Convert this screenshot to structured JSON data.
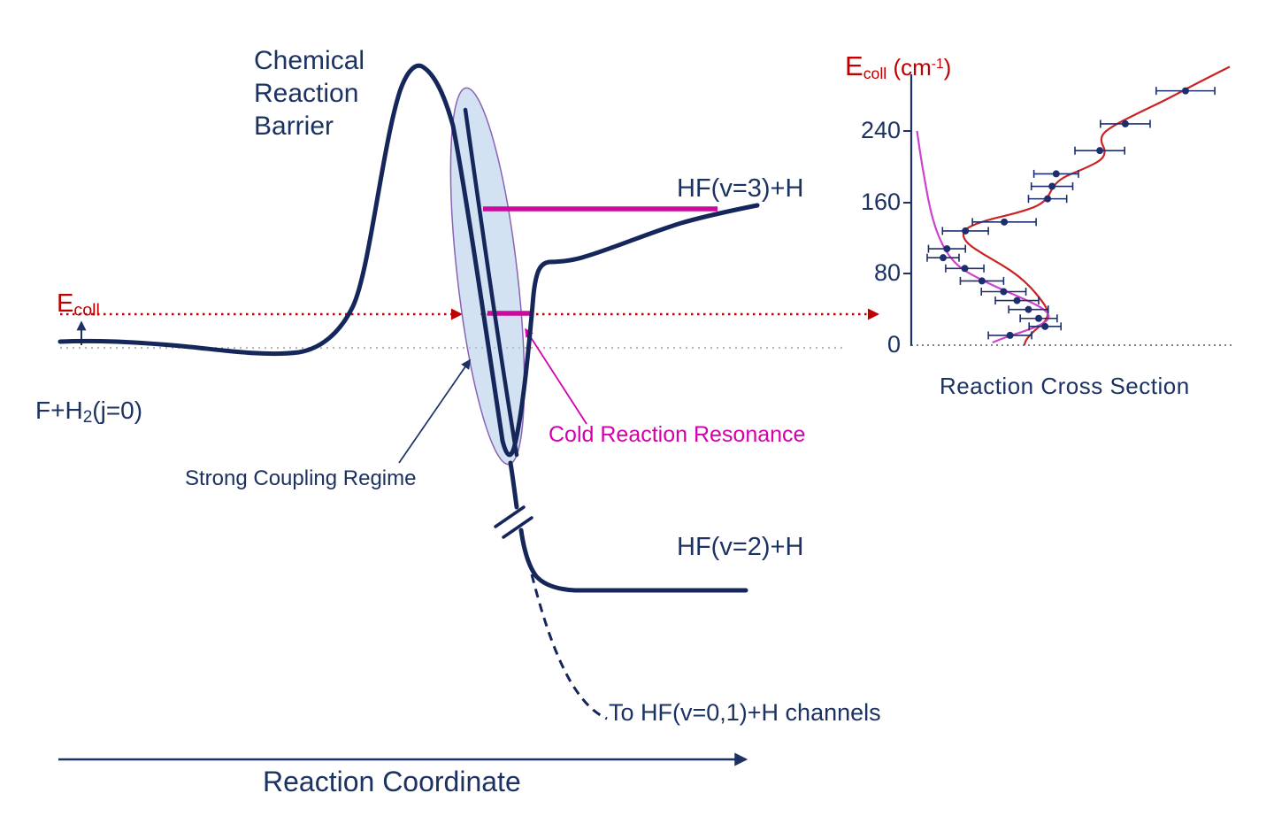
{
  "colors": {
    "navy": "#1b3263",
    "curve_navy": "#14265a",
    "red": "#c00000",
    "magenta": "#d400ab",
    "ellipse_fill": "#aecbe8",
    "ellipse_stroke": "#8a62b5"
  },
  "labels": {
    "barrier": "Chemical\nReaction\nBarrier",
    "hf_v3": "HF(v=3)+H",
    "hf_v2": "HF(v=2)+H",
    "to_channels": "To HF(v=0,1)+H channels",
    "reaction_coordinate": "Reaction Coordinate",
    "strong_coupling": "Strong Coupling Regime",
    "cold_resonance": "Cold Reaction Resonance",
    "ecoll": {
      "base": "E",
      "sub": "coll"
    },
    "reactant": {
      "pre": "F+H",
      "sub": "2",
      "post": "(j=0)"
    }
  },
  "chart_data": {
    "type": "scatter",
    "title": {
      "base": "E",
      "sub": "coll",
      "unit_open": " (cm",
      "sup": "-1",
      "unit_close": ")"
    },
    "xlabel": "Reaction Cross Section",
    "ylabel": "Ecoll (cm-1)",
    "ylim": [
      0,
      300
    ],
    "yticks": [
      "240",
      "160",
      "80",
      "0"
    ],
    "legend": "none",
    "grid": "dotted zero line only",
    "point_color": "#1d2e6e",
    "points": [
      {
        "e": 285,
        "cs": 0.861,
        "err": 0.092
      },
      {
        "e": 248,
        "cs": 0.672,
        "err": 0.078
      },
      {
        "e": 218,
        "cs": 0.592,
        "err": 0.078
      },
      {
        "e": 192,
        "cs": 0.455,
        "err": 0.07
      },
      {
        "e": 178,
        "cs": 0.442,
        "err": 0.065
      },
      {
        "e": 164,
        "cs": 0.428,
        "err": 0.06
      },
      {
        "e": 138,
        "cs": 0.292,
        "err": 0.1
      },
      {
        "e": 128,
        "cs": 0.17,
        "err": 0.072
      },
      {
        "e": 108,
        "cs": 0.112,
        "err": 0.058
      },
      {
        "e": 98,
        "cs": 0.1,
        "err": 0.05
      },
      {
        "e": 86,
        "cs": 0.168,
        "err": 0.06
      },
      {
        "e": 72,
        "cs": 0.222,
        "err": 0.068
      },
      {
        "e": 60,
        "cs": 0.29,
        "err": 0.07
      },
      {
        "e": 50,
        "cs": 0.332,
        "err": 0.068
      },
      {
        "e": 40,
        "cs": 0.368,
        "err": 0.062
      },
      {
        "e": 30,
        "cs": 0.4,
        "err": 0.058
      },
      {
        "e": 21,
        "cs": 0.42,
        "err": 0.05
      },
      {
        "e": 11,
        "cs": 0.31,
        "err": 0.068
      }
    ],
    "curves": [
      {
        "name": "theory-curve-red",
        "color": "#cc2222",
        "points": [
          [
            312,
            1.0
          ],
          [
            295,
            0.905
          ],
          [
            275,
            0.8
          ],
          [
            258,
            0.7
          ],
          [
            246,
            0.635
          ],
          [
            237,
            0.6
          ],
          [
            228,
            0.595
          ],
          [
            218,
            0.61
          ],
          [
            208,
            0.6
          ],
          [
            198,
            0.545
          ],
          [
            188,
            0.475
          ],
          [
            178,
            0.445
          ],
          [
            166,
            0.43
          ],
          [
            156,
            0.4
          ],
          [
            148,
            0.33
          ],
          [
            140,
            0.235
          ],
          [
            132,
            0.175
          ],
          [
            124,
            0.16
          ],
          [
            114,
            0.175
          ],
          [
            102,
            0.225
          ],
          [
            90,
            0.285
          ],
          [
            78,
            0.335
          ],
          [
            65,
            0.375
          ],
          [
            52,
            0.405
          ],
          [
            42,
            0.425
          ],
          [
            34,
            0.43
          ],
          [
            26,
            0.42
          ],
          [
            16,
            0.385
          ],
          [
            6,
            0.36
          ],
          [
            0,
            0.355
          ]
        ]
      },
      {
        "name": "resonance-curve-magenta",
        "color": "#cc44cc",
        "points": [
          [
            240,
            0.018
          ],
          [
            215,
            0.028
          ],
          [
            190,
            0.04
          ],
          [
            165,
            0.052
          ],
          [
            140,
            0.068
          ],
          [
            118,
            0.09
          ],
          [
            100,
            0.118
          ],
          [
            86,
            0.155
          ],
          [
            72,
            0.225
          ],
          [
            60,
            0.3
          ],
          [
            50,
            0.365
          ],
          [
            42,
            0.41
          ],
          [
            34,
            0.435
          ],
          [
            26,
            0.425
          ],
          [
            18,
            0.375
          ],
          [
            10,
            0.305
          ],
          [
            3,
            0.255
          ]
        ]
      }
    ]
  }
}
